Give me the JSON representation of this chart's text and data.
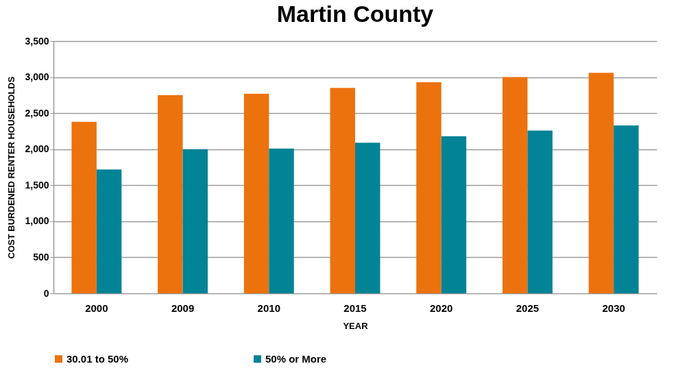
{
  "chart_data": {
    "type": "bar",
    "title": "Martin County",
    "xlabel": "YEAR",
    "ylabel": "COST BURDENED RENTER HOUSEHOLDS",
    "categories": [
      "2000",
      "2009",
      "2010",
      "2015",
      "2020",
      "2025",
      "2030"
    ],
    "series": [
      {
        "name": "30.01 to 50%",
        "color": "#ec720e",
        "values": [
          2380,
          2750,
          2770,
          2850,
          2930,
          3000,
          3060
        ]
      },
      {
        "name": "50% or More",
        "color": "#028396",
        "values": [
          1720,
          2000,
          2010,
          2090,
          2180,
          2260,
          2330
        ]
      }
    ],
    "ylim": [
      0,
      3500
    ],
    "yticks": [
      0,
      500,
      {
        "value": 1000,
        "label": "1,000"
      },
      {
        "value": 1500,
        "label": "1,500"
      },
      {
        "value": 2000,
        "label": "2,000"
      },
      {
        "value": 2500,
        "label": "2,500"
      },
      {
        "value": 3000,
        "label": "3,000"
      },
      {
        "value": 3500,
        "label": "3,500"
      }
    ],
    "grid": "y",
    "legend": "bottom"
  }
}
